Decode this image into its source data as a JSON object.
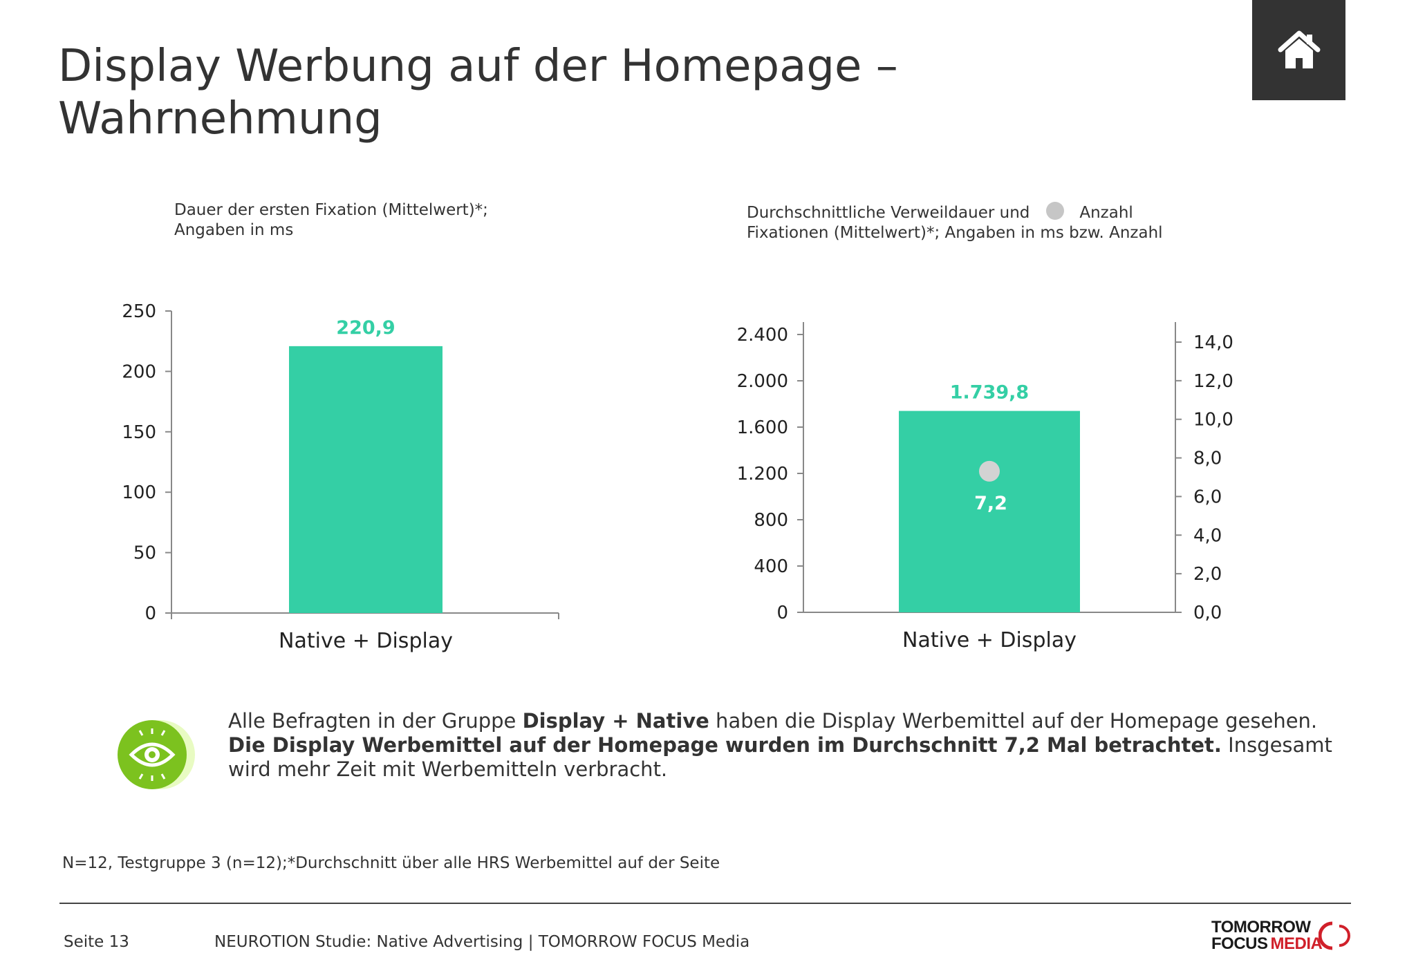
{
  "header": {
    "title_line1": "Display Werbung auf der Homepage –",
    "title_line2": "Wahrnehmung",
    "home_icon": "home-icon"
  },
  "captions": {
    "left_line1": "Dauer der ersten Fixation (Mittelwert)*;",
    "left_line2": "Angaben in ms",
    "right_line1_a": "Durchschnittliche Verweildauer und",
    "right_line1_b": "Anzahl",
    "right_line2": "Fixationen (Mittelwert)*; Angaben in ms bzw. Anzahl"
  },
  "colors": {
    "bar": "#34cfa5",
    "bar_label": "#34cfa5",
    "dot": "#d3d3d3",
    "dot_label": "#ffffff",
    "header_box": "#333333",
    "icon_green": "#7cc21f",
    "icon_green_light": "#e8fbc2",
    "logo_red": "#d0202a"
  },
  "chart_data": [
    {
      "type": "bar",
      "categories": [
        "Native + Display"
      ],
      "values": [
        220.9
      ],
      "value_labels": [
        "220,9"
      ],
      "ylim": [
        0,
        250
      ],
      "yticks": [
        0,
        50,
        100,
        150,
        200,
        250
      ],
      "ytick_labels": [
        "0",
        "50",
        "100",
        "150",
        "200",
        "250"
      ],
      "grid": false
    },
    {
      "type": "bar",
      "categories": [
        "Native + Display"
      ],
      "values": [
        1739.8
      ],
      "value_labels": [
        "1.739,8"
      ],
      "ylim": [
        0,
        2400
      ],
      "yticks": [
        0,
        400,
        800,
        1200,
        1600,
        2000,
        2400
      ],
      "ytick_labels": [
        "0",
        "400",
        "800",
        "1.200",
        "1.600",
        "2.000",
        "2.400"
      ],
      "y2lim": [
        0,
        14
      ],
      "y2ticks": [
        0,
        2,
        4,
        6,
        8,
        10,
        12,
        14
      ],
      "y2tick_labels": [
        "0,0",
        "2,0",
        "4,0",
        "6,0",
        "8,0",
        "10,0",
        "12,0",
        "14,0"
      ],
      "secondary_points": [
        7.2
      ],
      "secondary_labels": [
        "7,2"
      ],
      "grid": false
    }
  ],
  "info": {
    "icon": "eye-icon",
    "part1": "Alle Befragten in der Gruppe ",
    "part2": "Display + Native",
    "part3": " haben die Display Werbemittel auf der Homepage gesehen. ",
    "part4": "Die Display Werbemittel auf der Homepage wurden im Durchschnitt 7,2 Mal betrachtet.",
    "part5": " Insgesamt wird mehr Zeit mit Werbemitteln verbracht."
  },
  "footnote": "N=12, Testgruppe 3 (n=12);*Durchschnitt über alle HRS Werbemittel auf der Seite",
  "footer": {
    "page": "Seite 13",
    "text": "NEUROTION Studie: Native Advertising | TOMORROW FOCUS Media",
    "logo_line1": "TOMORROW",
    "logo_line2a": "FOCUS",
    "logo_line2b": "MEDIA"
  }
}
